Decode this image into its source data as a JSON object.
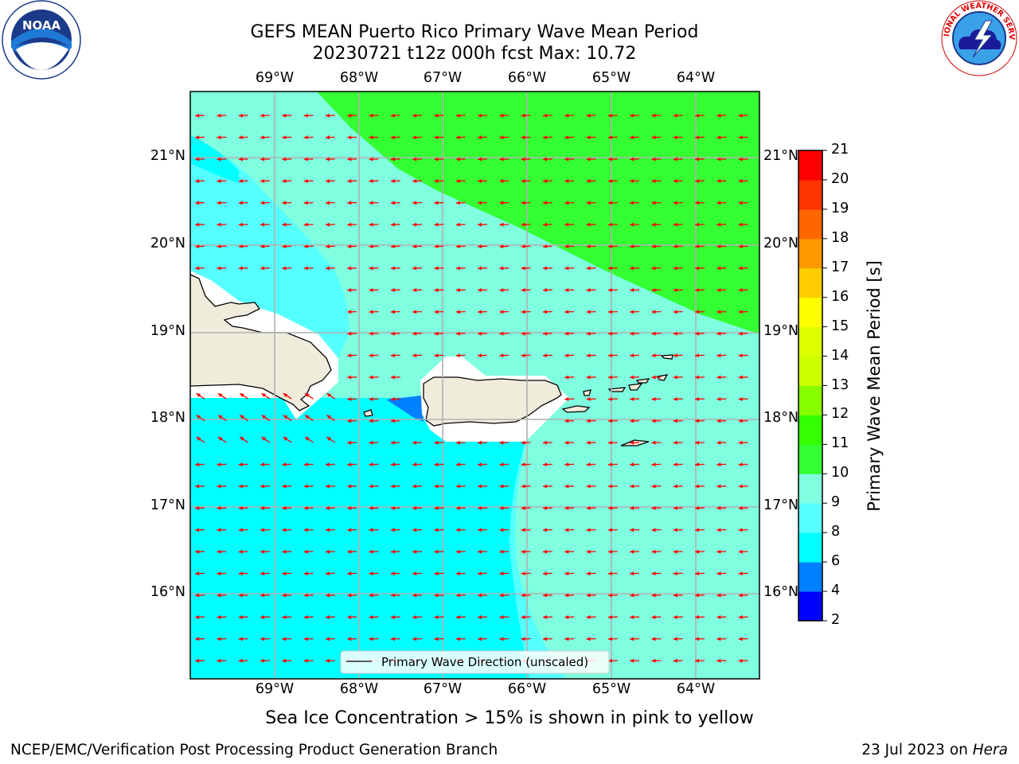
{
  "header": {
    "title_line1": "GEFS MEAN Puerto Rico Primary Wave Mean Period",
    "title_line2": "20230721 t12z 000h fcst   Max: 10.72"
  },
  "footer": {
    "note": "Sea Ice Concentration > 15% is shown in pink to yellow",
    "credit_left": "NCEP/EMC/Verification Post Processing Product Generation Branch",
    "credit_right_date": "23 Jul 2023 on ",
    "credit_right_machine": "Hera"
  },
  "logos": {
    "left": {
      "icon": "noaa-logo",
      "text": "NOAA",
      "ring_text": "NATIONAL OCEANIC AND ATMOSPHERIC ADMINISTRATION · U.S. DEPARTMENT OF COMMERCE"
    },
    "right": {
      "icon": "nws-logo",
      "ring_text": "NATIONAL WEATHER SERVICE"
    }
  },
  "map": {
    "lon_labels": [
      "69°W",
      "68°W",
      "67°W",
      "66°W",
      "65°W",
      "64°W"
    ],
    "lat_labels": [
      "21°N",
      "20°N",
      "19°N",
      "18°N",
      "17°N",
      "16°N"
    ],
    "legend_label": "Primary Wave Direction (unscaled)",
    "colors": {
      "ocean_9_10": "#7fffe0",
      "ocean_8_9": "#55ffff",
      "ocean_6_8": "#00ffff",
      "ocean_10_11": "#33ff33",
      "ocean_4_6": "#0080ff",
      "land": "#f0ecdc",
      "arrow": "#ff0000",
      "grid": "#b0b0b0"
    }
  },
  "colorbar": {
    "label": "Primary Wave Mean Period [s]",
    "ticks": [
      "2",
      "4",
      "6",
      "8",
      "9",
      "10",
      "11",
      "12",
      "13",
      "14",
      "15",
      "16",
      "17",
      "18",
      "19",
      "20",
      "21"
    ],
    "colors": [
      "#0000ff",
      "#0080ff",
      "#00ffff",
      "#55ffff",
      "#7fffe0",
      "#33ff33",
      "#33ff00",
      "#88ff00",
      "#ccff00",
      "#ddff00",
      "#ffff00",
      "#ffcc00",
      "#ff9900",
      "#ff6600",
      "#ff3300",
      "#ff0000"
    ]
  }
}
